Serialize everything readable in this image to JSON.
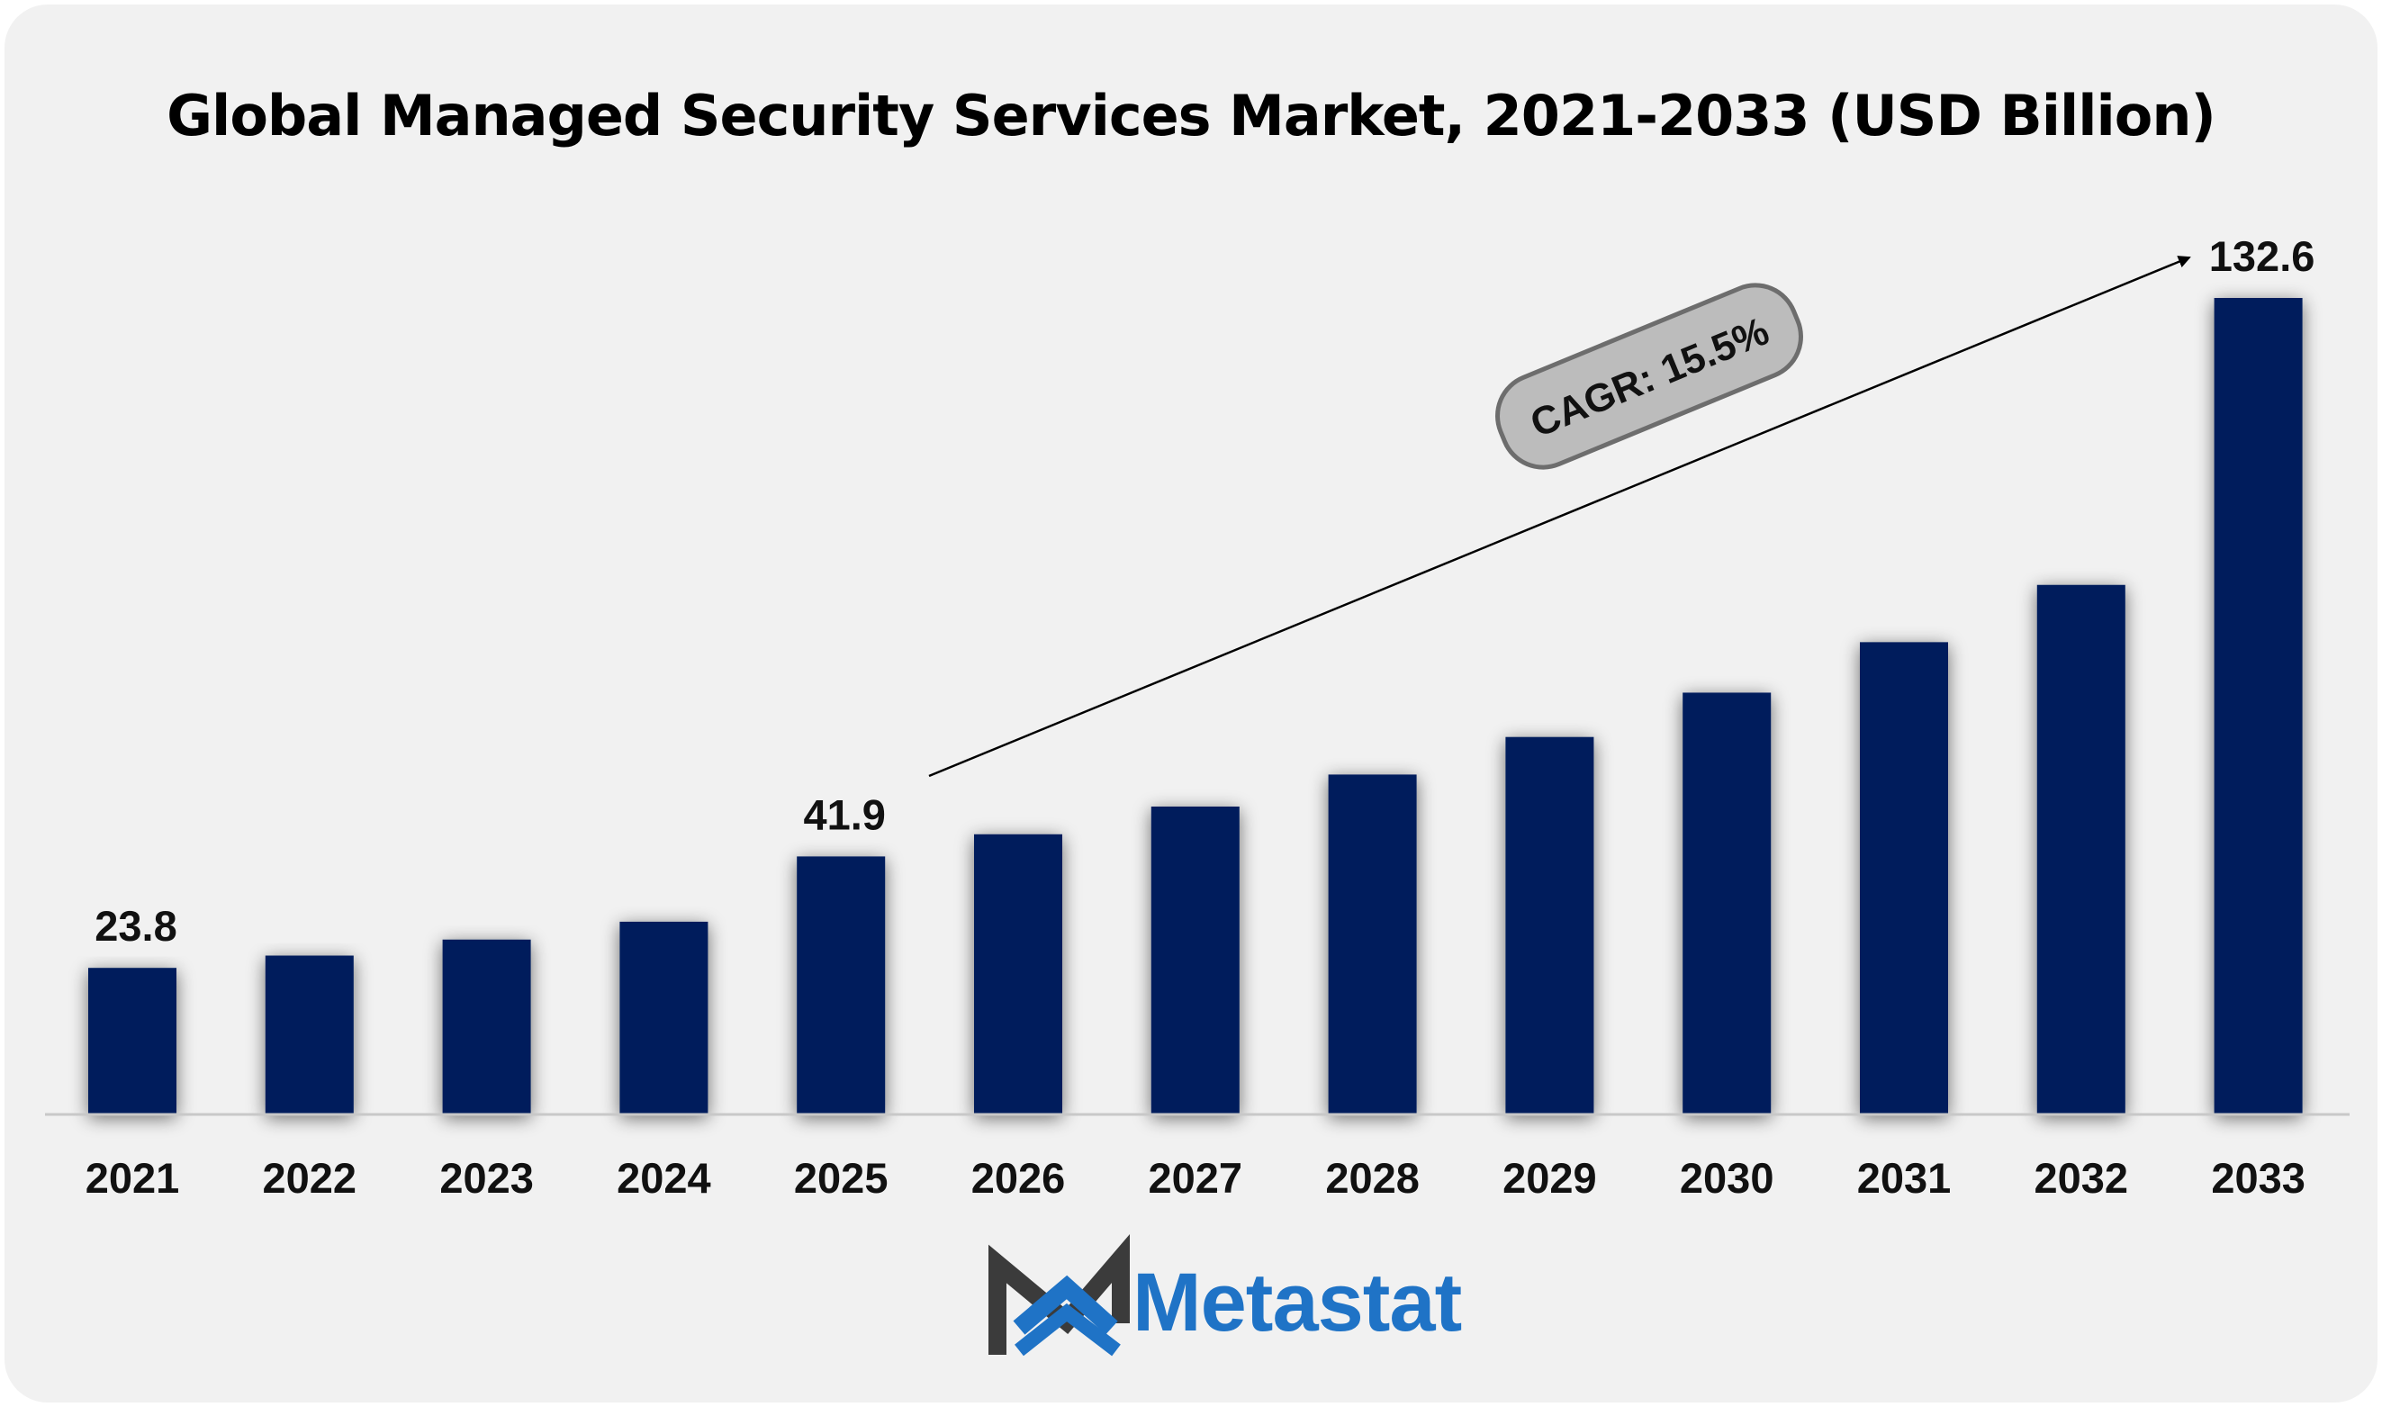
{
  "chart_data": {
    "type": "bar",
    "title": "Global Managed Security Services Market, 2021-2033 (USD Billion)",
    "categories": [
      "2021",
      "2022",
      "2023",
      "2024",
      "2025",
      "2026",
      "2027",
      "2028",
      "2029",
      "2030",
      "2031",
      "2032",
      "2033"
    ],
    "values": [
      23.8,
      25.8,
      28.4,
      31.3,
      41.9,
      45.5,
      50.0,
      55.2,
      61.3,
      68.5,
      76.7,
      86.0,
      132.6
    ],
    "data_labels": [
      {
        "index": 0,
        "text": "23.8"
      },
      {
        "index": 4,
        "text": "41.9"
      },
      {
        "index": 12,
        "text": "132.6"
      }
    ],
    "annotation": "CAGR: 15.5%",
    "ylim": [
      0,
      140
    ],
    "grid": false,
    "bar_color": "#021e5c"
  },
  "brand": {
    "name": "Metastat",
    "dark_color": "#3b3b3b",
    "accent_color": "#1f73c6"
  }
}
